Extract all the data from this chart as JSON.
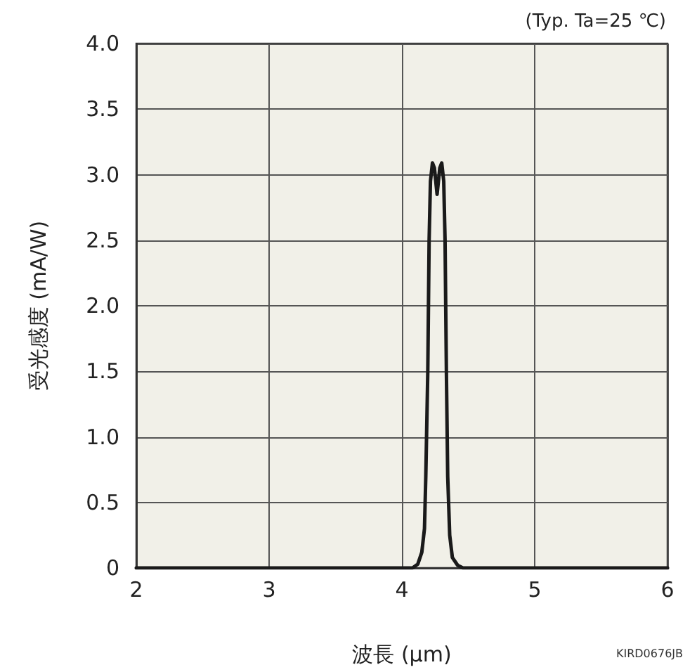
{
  "chart_data": {
    "type": "line",
    "xlabel": "波長 (µm)",
    "ylabel": "受光感度 (mA/W)",
    "annotations": [
      "(Typ. Ta=25 ℃)",
      "KIRD0676JB"
    ],
    "series": [
      {
        "color": "#1a1a1a",
        "x": [
          2,
          4,
          4.08,
          4.12,
          4.15,
          4.17,
          4.18,
          4.195,
          4.205,
          4.215,
          4.23,
          4.245,
          4.265,
          4.285,
          4.3,
          4.315,
          4.325,
          4.335,
          4.345,
          4.36,
          4.38,
          4.42,
          4.46,
          6
        ],
        "values": [
          0,
          0,
          0,
          0.03,
          0.12,
          0.3,
          0.7,
          1.5,
          2.5,
          2.95,
          3.09,
          3.05,
          2.85,
          3.05,
          3.09,
          2.95,
          2.5,
          1.5,
          0.7,
          0.25,
          0.08,
          0.02,
          0,
          0
        ]
      }
    ],
    "xlim": [
      2,
      6
    ],
    "xticks": [
      2,
      3,
      4,
      5,
      6
    ],
    "ylim": [
      0,
      4
    ],
    "yticks": [
      0,
      0.5,
      {
        "value": 1,
        "label": "1.0"
      },
      1.5,
      {
        "value": 2,
        "label": "2.0"
      },
      2.5,
      {
        "value": 3,
        "label": "3.0"
      },
      3.5,
      {
        "value": 4,
        "label": "4.0"
      }
    ],
    "grid": true,
    "marker": "none",
    "line_style": "solid"
  }
}
